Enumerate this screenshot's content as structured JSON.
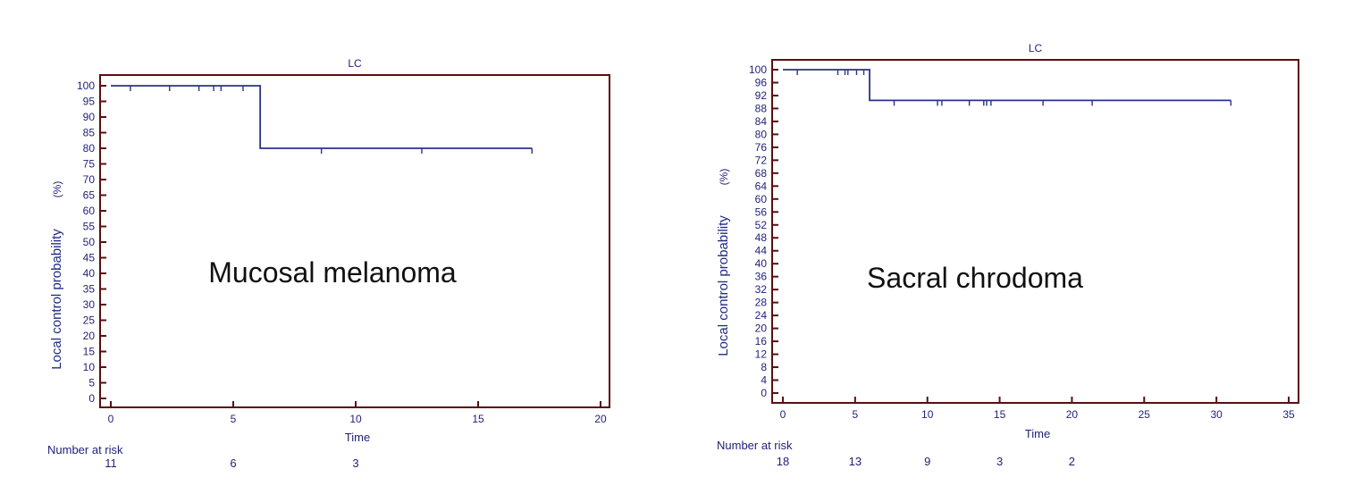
{
  "chart_data": [
    {
      "type": "line",
      "title": "LC",
      "annotation": "Mucosal melanoma",
      "xlabel": "Time",
      "ylabel": "Local control probability",
      "ylabel_unit": "(%)",
      "xlim": [
        0,
        20
      ],
      "ylim": [
        0,
        100
      ],
      "xticks": [
        0,
        5,
        10,
        15,
        20
      ],
      "yticks": [
        0,
        5,
        10,
        15,
        20,
        25,
        30,
        35,
        40,
        45,
        50,
        55,
        60,
        65,
        70,
        75,
        80,
        85,
        90,
        95,
        100
      ],
      "series": [
        {
          "x": [
            0,
            6.1,
            6.1,
            17.2
          ],
          "y": [
            100,
            100,
            80,
            80
          ],
          "censored": [
            {
              "x": 0.8,
              "y": 100
            },
            {
              "x": 2.4,
              "y": 100
            },
            {
              "x": 3.6,
              "y": 100
            },
            {
              "x": 4.2,
              "y": 100
            },
            {
              "x": 4.5,
              "y": 100
            },
            {
              "x": 5.4,
              "y": 100
            },
            {
              "x": 8.6,
              "y": 80
            },
            {
              "x": 12.7,
              "y": 80
            },
            {
              "x": 17.2,
              "y": 80
            }
          ]
        }
      ],
      "number_at_risk_label": "Number at risk",
      "number_at_risk": [
        {
          "x": 0,
          "n": "11"
        },
        {
          "x": 5,
          "n": "6"
        },
        {
          "x": 10,
          "n": "3"
        }
      ]
    },
    {
      "type": "line",
      "title": "LC",
      "annotation": "Sacral chrodoma",
      "xlabel": "Time",
      "ylabel": "Local control probability",
      "ylabel_unit": "(%)",
      "xlim": [
        0,
        35
      ],
      "ylim": [
        0,
        100
      ],
      "xticks": [
        0,
        5,
        10,
        15,
        20,
        25,
        30,
        35
      ],
      "yticks": [
        0,
        4,
        8,
        12,
        16,
        20,
        24,
        28,
        32,
        36,
        40,
        44,
        48,
        52,
        56,
        60,
        64,
        68,
        72,
        76,
        80,
        84,
        88,
        92,
        96,
        100
      ],
      "series": [
        {
          "x": [
            0,
            6,
            6,
            31
          ],
          "y": [
            100,
            100,
            90.5,
            90.5
          ],
          "censored": [
            {
              "x": 1,
              "y": 100
            },
            {
              "x": 3.8,
              "y": 100
            },
            {
              "x": 4.3,
              "y": 100
            },
            {
              "x": 4.5,
              "y": 100
            },
            {
              "x": 5.1,
              "y": 100
            },
            {
              "x": 5.6,
              "y": 100
            },
            {
              "x": 7.7,
              "y": 90.5
            },
            {
              "x": 10.7,
              "y": 90.5
            },
            {
              "x": 11,
              "y": 90.5
            },
            {
              "x": 12.9,
              "y": 90.5
            },
            {
              "x": 13.9,
              "y": 90.5
            },
            {
              "x": 14.1,
              "y": 90.5
            },
            {
              "x": 14.4,
              "y": 90.5
            },
            {
              "x": 18,
              "y": 90.5
            },
            {
              "x": 21.4,
              "y": 90.5
            },
            {
              "x": 31,
              "y": 90.5
            }
          ]
        }
      ],
      "number_at_risk_label": "Number at risk",
      "number_at_risk": [
        {
          "x": 0,
          "n": "18"
        },
        {
          "x": 5,
          "n": "13"
        },
        {
          "x": 10,
          "n": "9"
        },
        {
          "x": 15,
          "n": "3"
        },
        {
          "x": 20,
          "n": "2"
        }
      ]
    }
  ],
  "colors": {
    "frame": "#5a0f0f",
    "line": "#2b3386",
    "text": "#1f1f7a"
  }
}
